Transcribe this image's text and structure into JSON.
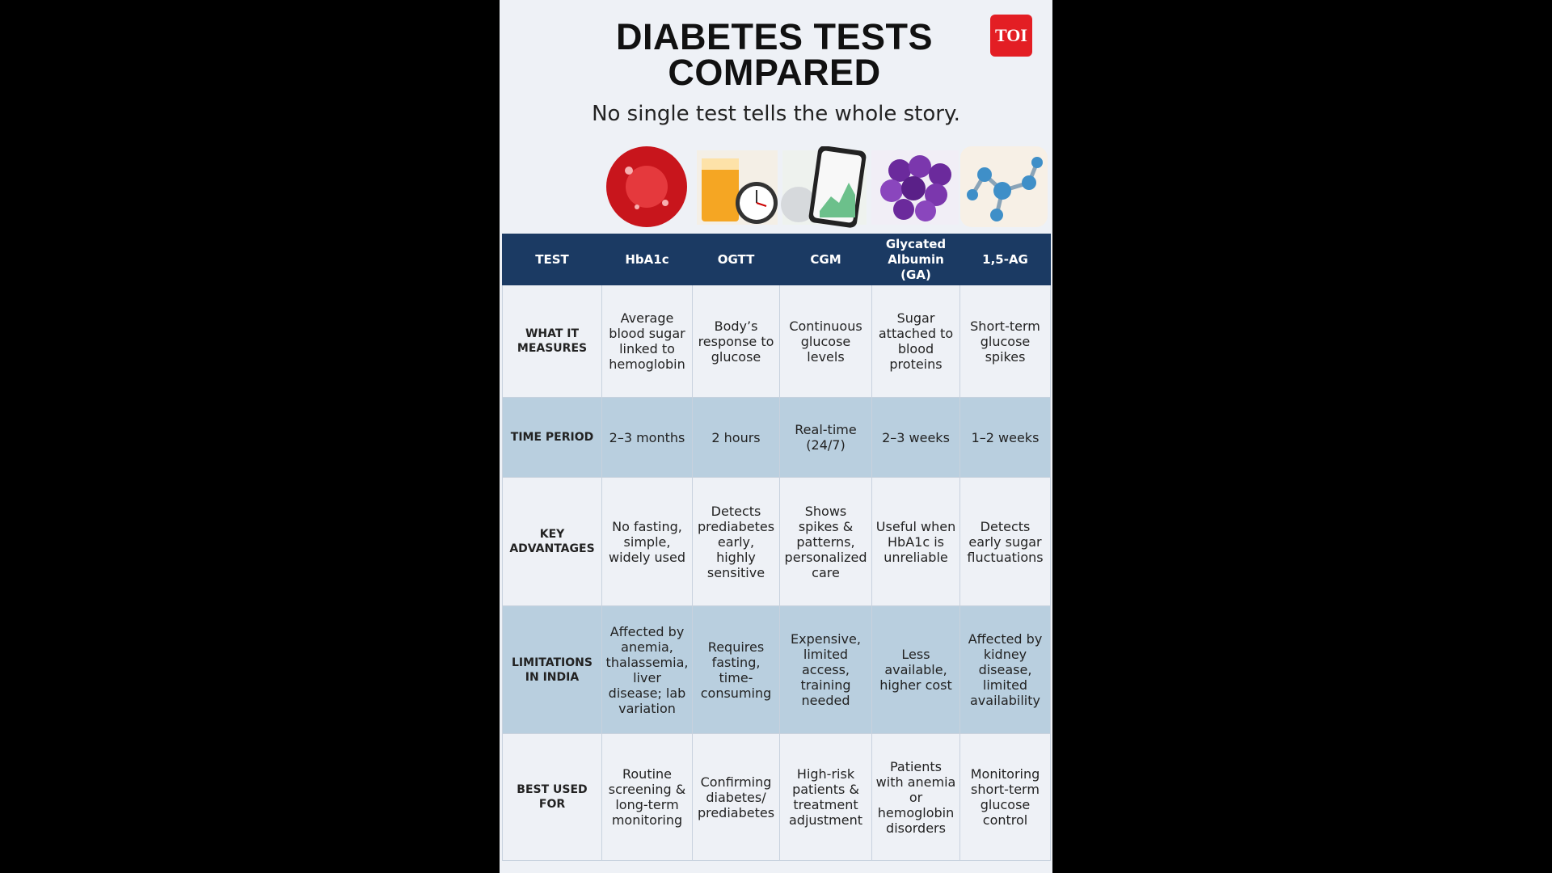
{
  "header": {
    "title": "DIABETES TESTS COMPARED",
    "subtitle": "No single test tells the whole story.",
    "logo": "TOI"
  },
  "table": {
    "columns": [
      "TEST",
      "HbA1c",
      "OGTT",
      "CGM",
      "Glycated Albumin (GA)",
      "1,5-AG"
    ],
    "rows": [
      {
        "label": "WHAT IT MEASURES",
        "cells": [
          "Average blood sugar linked to hemoglobin",
          "Body’s response to glucose",
          "Continuous glucose levels",
          "Sugar attached to blood proteins",
          "Short-term glucose spikes"
        ]
      },
      {
        "label": "TIME PERIOD",
        "cells": [
          "2–3 months",
          "2 hours",
          "Real-time (24/7)",
          "2–3 weeks",
          "1–2 weeks"
        ]
      },
      {
        "label": "KEY ADVANTAGES",
        "cells": [
          "No fasting, simple, widely used",
          "Detects prediabetes early, highly sensitive",
          "Shows spikes & patterns, personalized care",
          "Useful when HbA1c is unreliable",
          "Detects early sugar fluctuations"
        ]
      },
      {
        "label": "LIMITATIONS IN INDIA",
        "cells": [
          "Affected by anemia, thalassemia, liver disease; lab variation",
          "Requires fasting, time-consuming",
          "Expensive, limited access, training needed",
          "Less available, higher cost",
          "Affected by kidney disease, limited availability"
        ]
      },
      {
        "label": "BEST USED FOR",
        "cells": [
          "Routine screening & long-term monitoring",
          "Confirming diabetes/ prediabetes",
          "High-risk patients & treatment adjustment",
          "Patients with anemia or hemoglobin disorders",
          "Monitoring short-term glucose control"
        ]
      }
    ]
  }
}
